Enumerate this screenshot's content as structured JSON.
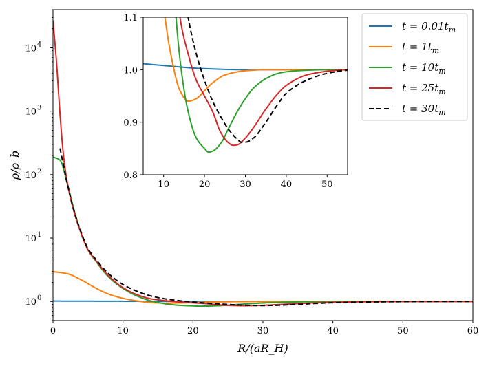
{
  "chart_data": {
    "type": "line",
    "xlabel": "R/(aR_H)",
    "ylabel": "ρ/ρ_b",
    "main": {
      "xlim": [
        0,
        60
      ],
      "yscale": "log",
      "ylim": [
        0.5,
        40000
      ],
      "xticks": [
        0,
        10,
        20,
        30,
        40,
        50,
        60
      ],
      "ytick_labels": [
        {
          "value": 1,
          "base": "10",
          "exp": "0"
        },
        {
          "value": 10,
          "base": "10",
          "exp": "1"
        },
        {
          "value": 100,
          "base": "10",
          "exp": "2"
        },
        {
          "value": 1000,
          "base": "10",
          "exp": "3"
        },
        {
          "value": 10000,
          "base": "10",
          "exp": "4"
        }
      ]
    },
    "inset": {
      "xlim": [
        5,
        55
      ],
      "ylim": [
        0.8,
        1.1
      ],
      "xticks": [
        10,
        20,
        30,
        40,
        50
      ],
      "yticks": [
        "0.8",
        "0.9",
        "1.0",
        "1.1"
      ]
    },
    "legend_position": "top-right",
    "series": [
      {
        "name": "t = 0.01t_m",
        "label_prefix": "t = 0.01",
        "label_t": "t",
        "label_sub": "m",
        "color": "#1f77b4",
        "dash": "solid",
        "x": [
          0,
          10,
          20,
          30,
          40,
          50,
          60
        ],
        "y": [
          1.015,
          1.008,
          1.002,
          1.0,
          1.0,
          1.0,
          1.0
        ]
      },
      {
        "name": "t = 1t_m",
        "label_prefix": "t = 1",
        "label_t": "t",
        "label_sub": "m",
        "color": "#ff7f0e",
        "dash": "solid",
        "x": [
          0,
          2,
          4,
          6,
          8,
          10,
          12,
          14,
          16,
          18,
          20,
          22,
          25,
          30,
          35,
          40,
          50,
          60
        ],
        "y": [
          2.95,
          2.75,
          2.2,
          1.65,
          1.3,
          1.12,
          1.02,
          0.96,
          0.94,
          0.945,
          0.96,
          0.975,
          0.99,
          0.998,
          1.0,
          1.0,
          1.0,
          1.0
        ]
      },
      {
        "name": "t = 10t_m",
        "label_prefix": "t = 10",
        "label_t": "t",
        "label_sub": "m",
        "color": "#2ca02c",
        "dash": "solid",
        "x": [
          0,
          1,
          2,
          3,
          4,
          5,
          6,
          8,
          10,
          12,
          14,
          16,
          18,
          20,
          21,
          22,
          24,
          26,
          28,
          30,
          32,
          35,
          38,
          40,
          45,
          50,
          55,
          60
        ],
        "y": [
          190,
          170,
          75,
          28,
          12,
          6.5,
          4.5,
          2.4,
          1.6,
          1.22,
          1.02,
          0.92,
          0.87,
          0.85,
          0.843,
          0.845,
          0.86,
          0.89,
          0.92,
          0.945,
          0.965,
          0.983,
          0.993,
          0.996,
          0.999,
          1.0,
          1.0,
          1.0
        ]
      },
      {
        "name": "t = 25t_m",
        "label_prefix": "t = 25",
        "label_t": "t",
        "label_sub": "m",
        "color": "#d62728",
        "dash": "solid",
        "x": [
          0,
          0.5,
          1,
          1.5,
          2,
          3,
          4,
          5,
          6,
          8,
          10,
          12,
          14,
          16,
          18,
          20,
          22,
          24,
          26,
          27,
          28,
          30,
          32,
          35,
          38,
          40,
          45,
          50,
          55,
          60
        ],
        "y": [
          27000,
          6000,
          900,
          200,
          80,
          26,
          12,
          6.5,
          4.6,
          2.5,
          1.65,
          1.28,
          1.1,
          1.03,
          0.98,
          0.95,
          0.92,
          0.88,
          0.86,
          0.856,
          0.857,
          0.87,
          0.89,
          0.925,
          0.955,
          0.97,
          0.99,
          0.997,
          1.0,
          1.0
        ]
      },
      {
        "name": "t = 30t_m",
        "label_prefix": "t = 30",
        "label_t": "t",
        "label_sub": "m",
        "color": "#000000",
        "dash": "dashed",
        "x": [
          1,
          1.5,
          2,
          3,
          4,
          5,
          6,
          8,
          10,
          12,
          14,
          16,
          18,
          20,
          22,
          24,
          26,
          28,
          29,
          30,
          32,
          35,
          38,
          40,
          45,
          50,
          55,
          60
        ],
        "y": [
          260,
          140,
          75,
          27,
          12.5,
          6.8,
          4.8,
          2.7,
          1.85,
          1.45,
          1.22,
          1.1,
          1.03,
          0.98,
          0.94,
          0.91,
          0.885,
          0.868,
          0.862,
          0.862,
          0.87,
          0.9,
          0.935,
          0.955,
          0.98,
          0.993,
          0.999,
          1.0
        ]
      }
    ]
  }
}
